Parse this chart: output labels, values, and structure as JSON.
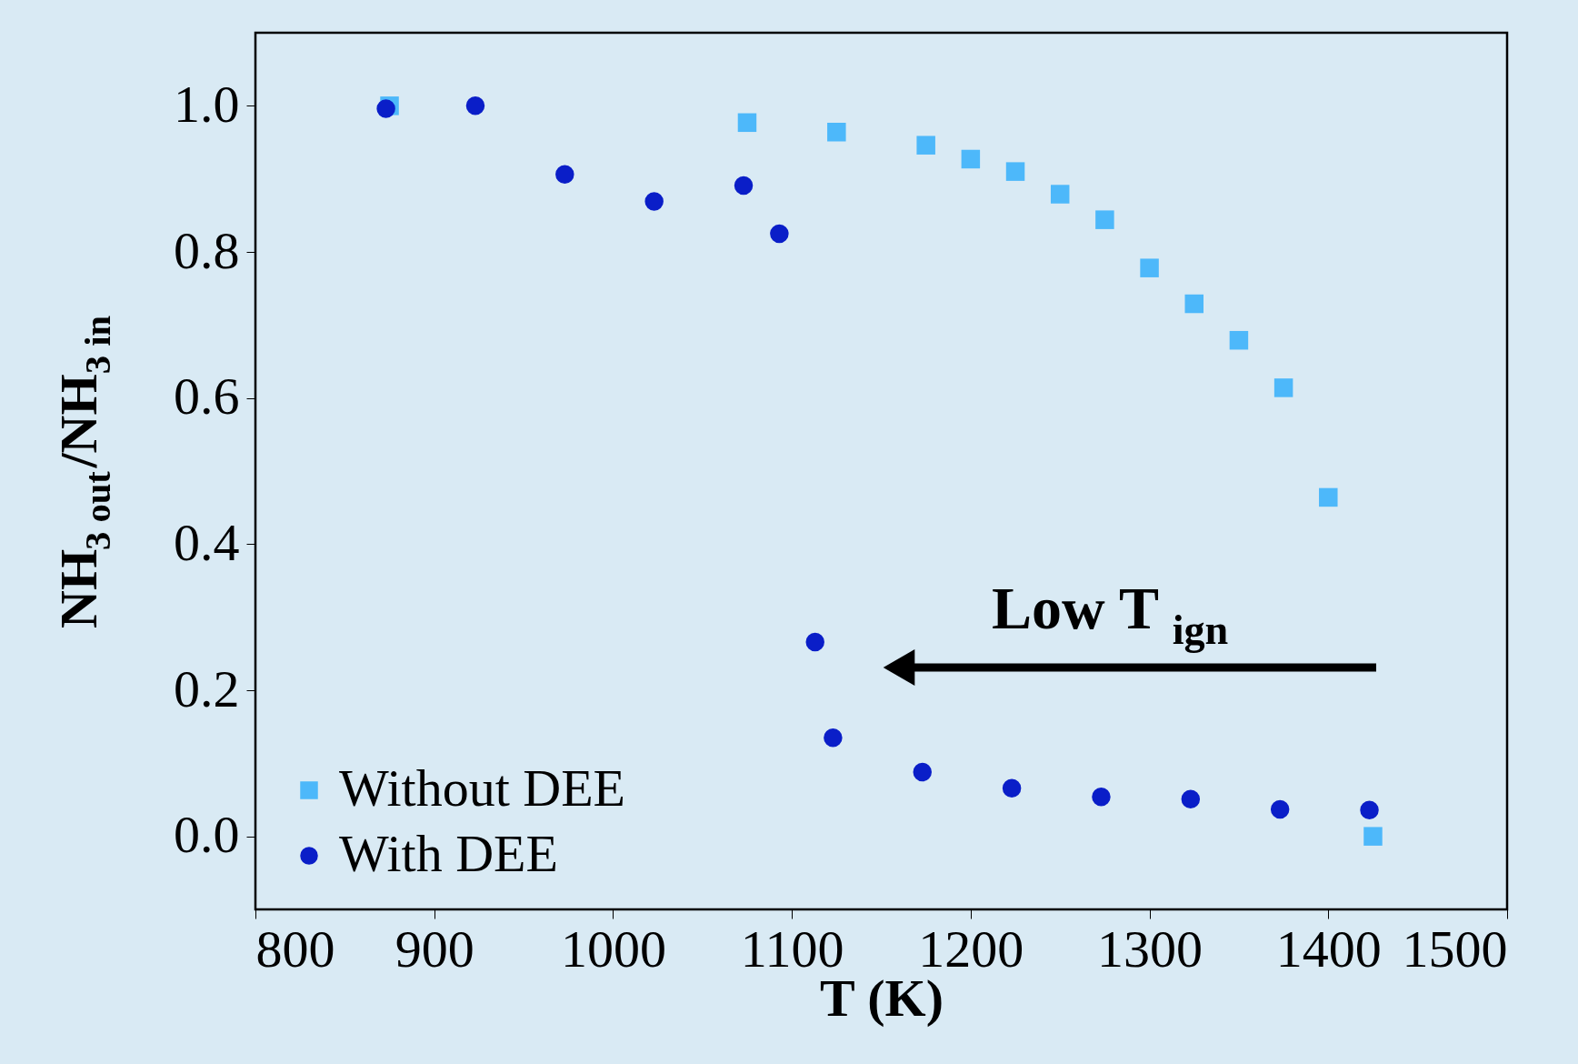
{
  "chart_data": {
    "type": "scatter",
    "xlabel": "T (K)",
    "ylabel": "NH$_{3 out}$/NH$_{3 in}$",
    "xlim": [
      800,
      1500
    ],
    "xticks": [
      800,
      900,
      1000,
      1100,
      1200,
      1300,
      1400,
      1500
    ],
    "ylim": [
      -0.1,
      1.1
    ],
    "yticks": [
      {
        "value": 0,
        "label": "0.0"
      },
      0.2,
      0.4,
      0.6,
      0.8,
      {
        "value": 1,
        "label": "1.0"
      }
    ],
    "grid": false,
    "legend": "bottom left",
    "series": [
      {
        "name": "Without DEE",
        "color": "#4db8fa",
        "marker": "square",
        "x": [
          875,
          1075,
          1125,
          1175,
          1200,
          1225,
          1250,
          1275,
          1300,
          1325,
          1350,
          1375,
          1400,
          1425
        ],
        "values": [
          1.0,
          0.977,
          0.964,
          0.946,
          0.927,
          0.91,
          0.879,
          0.844,
          0.778,
          0.729,
          0.679,
          0.614,
          0.464,
          0.0
        ]
      },
      {
        "name": "With DEE",
        "color": "#0a1ec8",
        "marker": "circle",
        "x": [
          873,
          923,
          973,
          1023,
          1073,
          1093,
          1113,
          1123,
          1173,
          1223,
          1273,
          1323,
          1373,
          1423
        ],
        "values": [
          0.996,
          1.0,
          0.906,
          0.869,
          0.891,
          0.825,
          0.266,
          0.135,
          0.088,
          0.066,
          0.054,
          0.051,
          0.037,
          0.036
        ]
      }
    ],
    "annotations": [
      "Low T$_{ign}$"
    ]
  }
}
